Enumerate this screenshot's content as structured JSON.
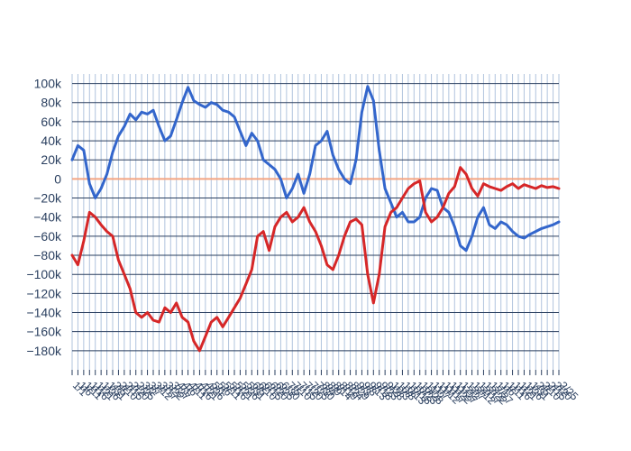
{
  "chart_data": {
    "type": "line",
    "title": "",
    "xlabel": "",
    "ylabel": "",
    "ylim": [
      -200000,
      110000
    ],
    "y_ticks": [
      100000,
      80000,
      60000,
      40000,
      20000,
      0,
      -20000,
      -40000,
      -60000,
      -80000,
      -100000,
      -120000,
      -140000,
      -160000,
      -180000
    ],
    "y_tick_labels": [
      "100k",
      "80k",
      "60k",
      "40k",
      "20k",
      "0",
      "−20k",
      "−40k",
      "−60k",
      "−80k",
      "−100k",
      "−120k",
      "−140k",
      "−160k",
      "−180k"
    ],
    "x_count": 85,
    "grid": true,
    "legend": "none",
    "zero_line_color": "#f4a582",
    "series": [
      {
        "color": "#3366cc",
        "values": [
          20000,
          35000,
          30000,
          -5000,
          -20000,
          -10000,
          5000,
          28000,
          45000,
          55000,
          68000,
          62000,
          70000,
          68000,
          72000,
          55000,
          40000,
          45000,
          62000,
          80000,
          96000,
          82000,
          78000,
          75000,
          80000,
          78000,
          72000,
          70000,
          65000,
          50000,
          35000,
          48000,
          40000,
          20000,
          15000,
          10000,
          0,
          -20000,
          -10000,
          5000,
          -15000,
          5000,
          35000,
          40000,
          50000,
          25000,
          10000,
          0,
          -5000,
          20000,
          70000,
          97000,
          82000,
          30000,
          -10000,
          -25000,
          -40000,
          -35000,
          -45000,
          -45000,
          -40000,
          -20000,
          -10000,
          -12000,
          -30000,
          -35000,
          -50000,
          -70000,
          -75000,
          -60000,
          -40000,
          -30000,
          -48000,
          -52000,
          -45000,
          -48000,
          -55000,
          -60000,
          -62000,
          -58000,
          -55000,
          -52000,
          -50000,
          -48000,
          -45000
        ]
      },
      {
        "color": "#d62728",
        "values": [
          -80000,
          -90000,
          -65000,
          -35000,
          -40000,
          -48000,
          -55000,
          -60000,
          -85000,
          -100000,
          -115000,
          -140000,
          -145000,
          -140000,
          -148000,
          -150000,
          -135000,
          -140000,
          -130000,
          -145000,
          -150000,
          -170000,
          -180000,
          -165000,
          -150000,
          -145000,
          -155000,
          -145000,
          -135000,
          -125000,
          -110000,
          -95000,
          -60000,
          -55000,
          -75000,
          -50000,
          -40000,
          -35000,
          -45000,
          -40000,
          -30000,
          -45000,
          -55000,
          -70000,
          -90000,
          -95000,
          -80000,
          -60000,
          -45000,
          -42000,
          -48000,
          -100000,
          -130000,
          -100000,
          -50000,
          -35000,
          -30000,
          -20000,
          -10000,
          -5000,
          -2000,
          -35000,
          -45000,
          -40000,
          -30000,
          -15000,
          -8000,
          12000,
          5000,
          -10000,
          -18000,
          -5000,
          -8000,
          -10000,
          -12000,
          -8000,
          -5000,
          -10000,
          -6000,
          -8000,
          -10000,
          -7000,
          -9000,
          -8000,
          -10000
        ]
      }
    ],
    "x_tick_labels": [
      "1/1",
      "1/6",
      "1/11",
      "1/16",
      "1/21",
      "1/26",
      "1/31",
      "2/5",
      "2/10",
      "2/15",
      "2/20",
      "2/25",
      "3/2",
      "3/7",
      "3/12",
      "3/17",
      "3/22",
      "3/27",
      "4/1",
      "4/6",
      "4/11",
      "4/16",
      "4/21",
      "4/26",
      "5/1",
      "5/6",
      "5/11",
      "5/16",
      "5/21",
      "5/26",
      "5/31",
      "6/5",
      "6/10",
      "6/15",
      "6/20",
      "6/25",
      "6/30",
      "7/5",
      "7/10",
      "7/15",
      "7/20",
      "7/25",
      "7/30",
      "8/4",
      "8/9",
      "8/14",
      "8/19",
      "8/24",
      "8/29",
      "9/3",
      "9/8",
      "9/13",
      "9/18",
      "9/23",
      "9/28",
      "10/3",
      "10/8",
      "10/13",
      "10/18",
      "10/23",
      "10/28",
      "11/2",
      "11/7",
      "11/12",
      "11/17",
      "11/22",
      "11/27",
      "12/2",
      "12/7",
      "12/12",
      "12/17",
      "12/22",
      "12/27",
      "1/1",
      "1/6",
      "1/11",
      "1/16",
      "1/21",
      "1/26",
      "1/31",
      "2/5",
      "2/10",
      "2/15",
      "2/20",
      "2/25"
    ]
  }
}
